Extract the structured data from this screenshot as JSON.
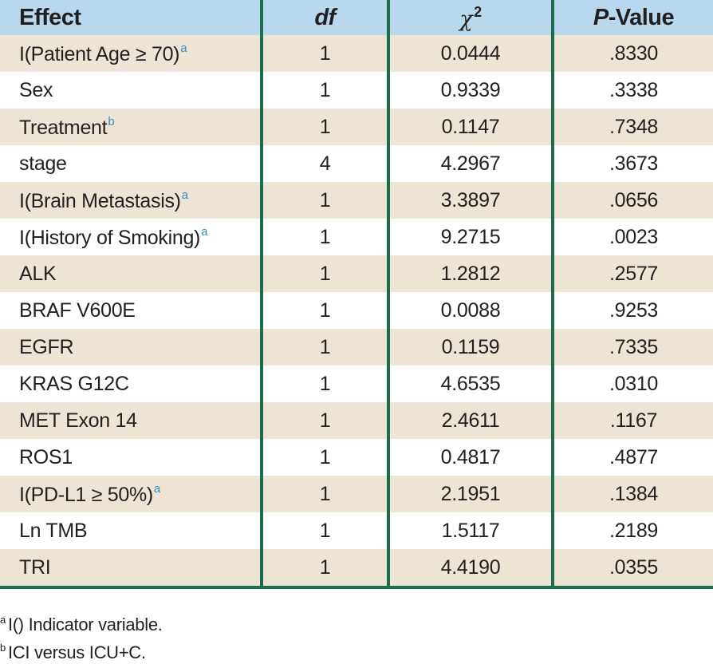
{
  "table": {
    "headers": {
      "effect": "Effect",
      "df": "df",
      "chi_symbol": "χ",
      "chi_exp": "2",
      "p_italic": "P",
      "p_rest": "-Value"
    },
    "rows": [
      {
        "effect": "I(Patient Age ≥ 70)",
        "sup": "a",
        "df": "1",
        "chi2": "0.0444",
        "p": ".8330"
      },
      {
        "effect": "Sex",
        "sup": "",
        "df": "1",
        "chi2": "0.9339",
        "p": ".3338"
      },
      {
        "effect": "Treatment",
        "sup": "b",
        "df": "1",
        "chi2": "0.1147",
        "p": ".7348"
      },
      {
        "effect": "stage",
        "sup": "",
        "df": "4",
        "chi2": "4.2967",
        "p": ".3673"
      },
      {
        "effect": "I(Brain Metastasis)",
        "sup": "a",
        "df": "1",
        "chi2": "3.3897",
        "p": ".0656"
      },
      {
        "effect": "I(History of Smoking)",
        "sup": "a",
        "df": "1",
        "chi2": "9.2715",
        "p": ".0023"
      },
      {
        "effect": "ALK",
        "sup": "",
        "df": "1",
        "chi2": "1.2812",
        "p": ".2577"
      },
      {
        "effect": "BRAF V600E",
        "sup": "",
        "df": "1",
        "chi2": "0.0088",
        "p": ".9253"
      },
      {
        "effect": "EGFR",
        "sup": "",
        "df": "1",
        "chi2": "0.1159",
        "p": ".7335"
      },
      {
        "effect": "KRAS G12C",
        "sup": "",
        "df": "1",
        "chi2": "4.6535",
        "p": ".0310"
      },
      {
        "effect": "MET Exon 14",
        "sup": "",
        "df": "1",
        "chi2": "2.4611",
        "p": ".1167"
      },
      {
        "effect": "ROS1",
        "sup": "",
        "df": "1",
        "chi2": "0.4817",
        "p": ".4877"
      },
      {
        "effect": "I(PD-L1 ≥ 50%)",
        "sup": "a",
        "df": "1",
        "chi2": "2.1951",
        "p": ".1384"
      },
      {
        "effect": "Ln TMB",
        "sup": "",
        "df": "1",
        "chi2": "1.5117",
        "p": ".2189"
      },
      {
        "effect": "TRI",
        "sup": "",
        "df": "1",
        "chi2": "4.4190",
        "p": ".0355"
      }
    ]
  },
  "footnotes": [
    {
      "mark": "a",
      "text": "I() Indicator variable."
    },
    {
      "mark": "b",
      "text": "ICI versus ICU+C."
    }
  ],
  "colors": {
    "header_bg": "#b9d8ee",
    "stripe_bg": "#ede4d6",
    "rule_color": "#1f6b4e",
    "footnote_mark_color": "#3a8cc0"
  }
}
